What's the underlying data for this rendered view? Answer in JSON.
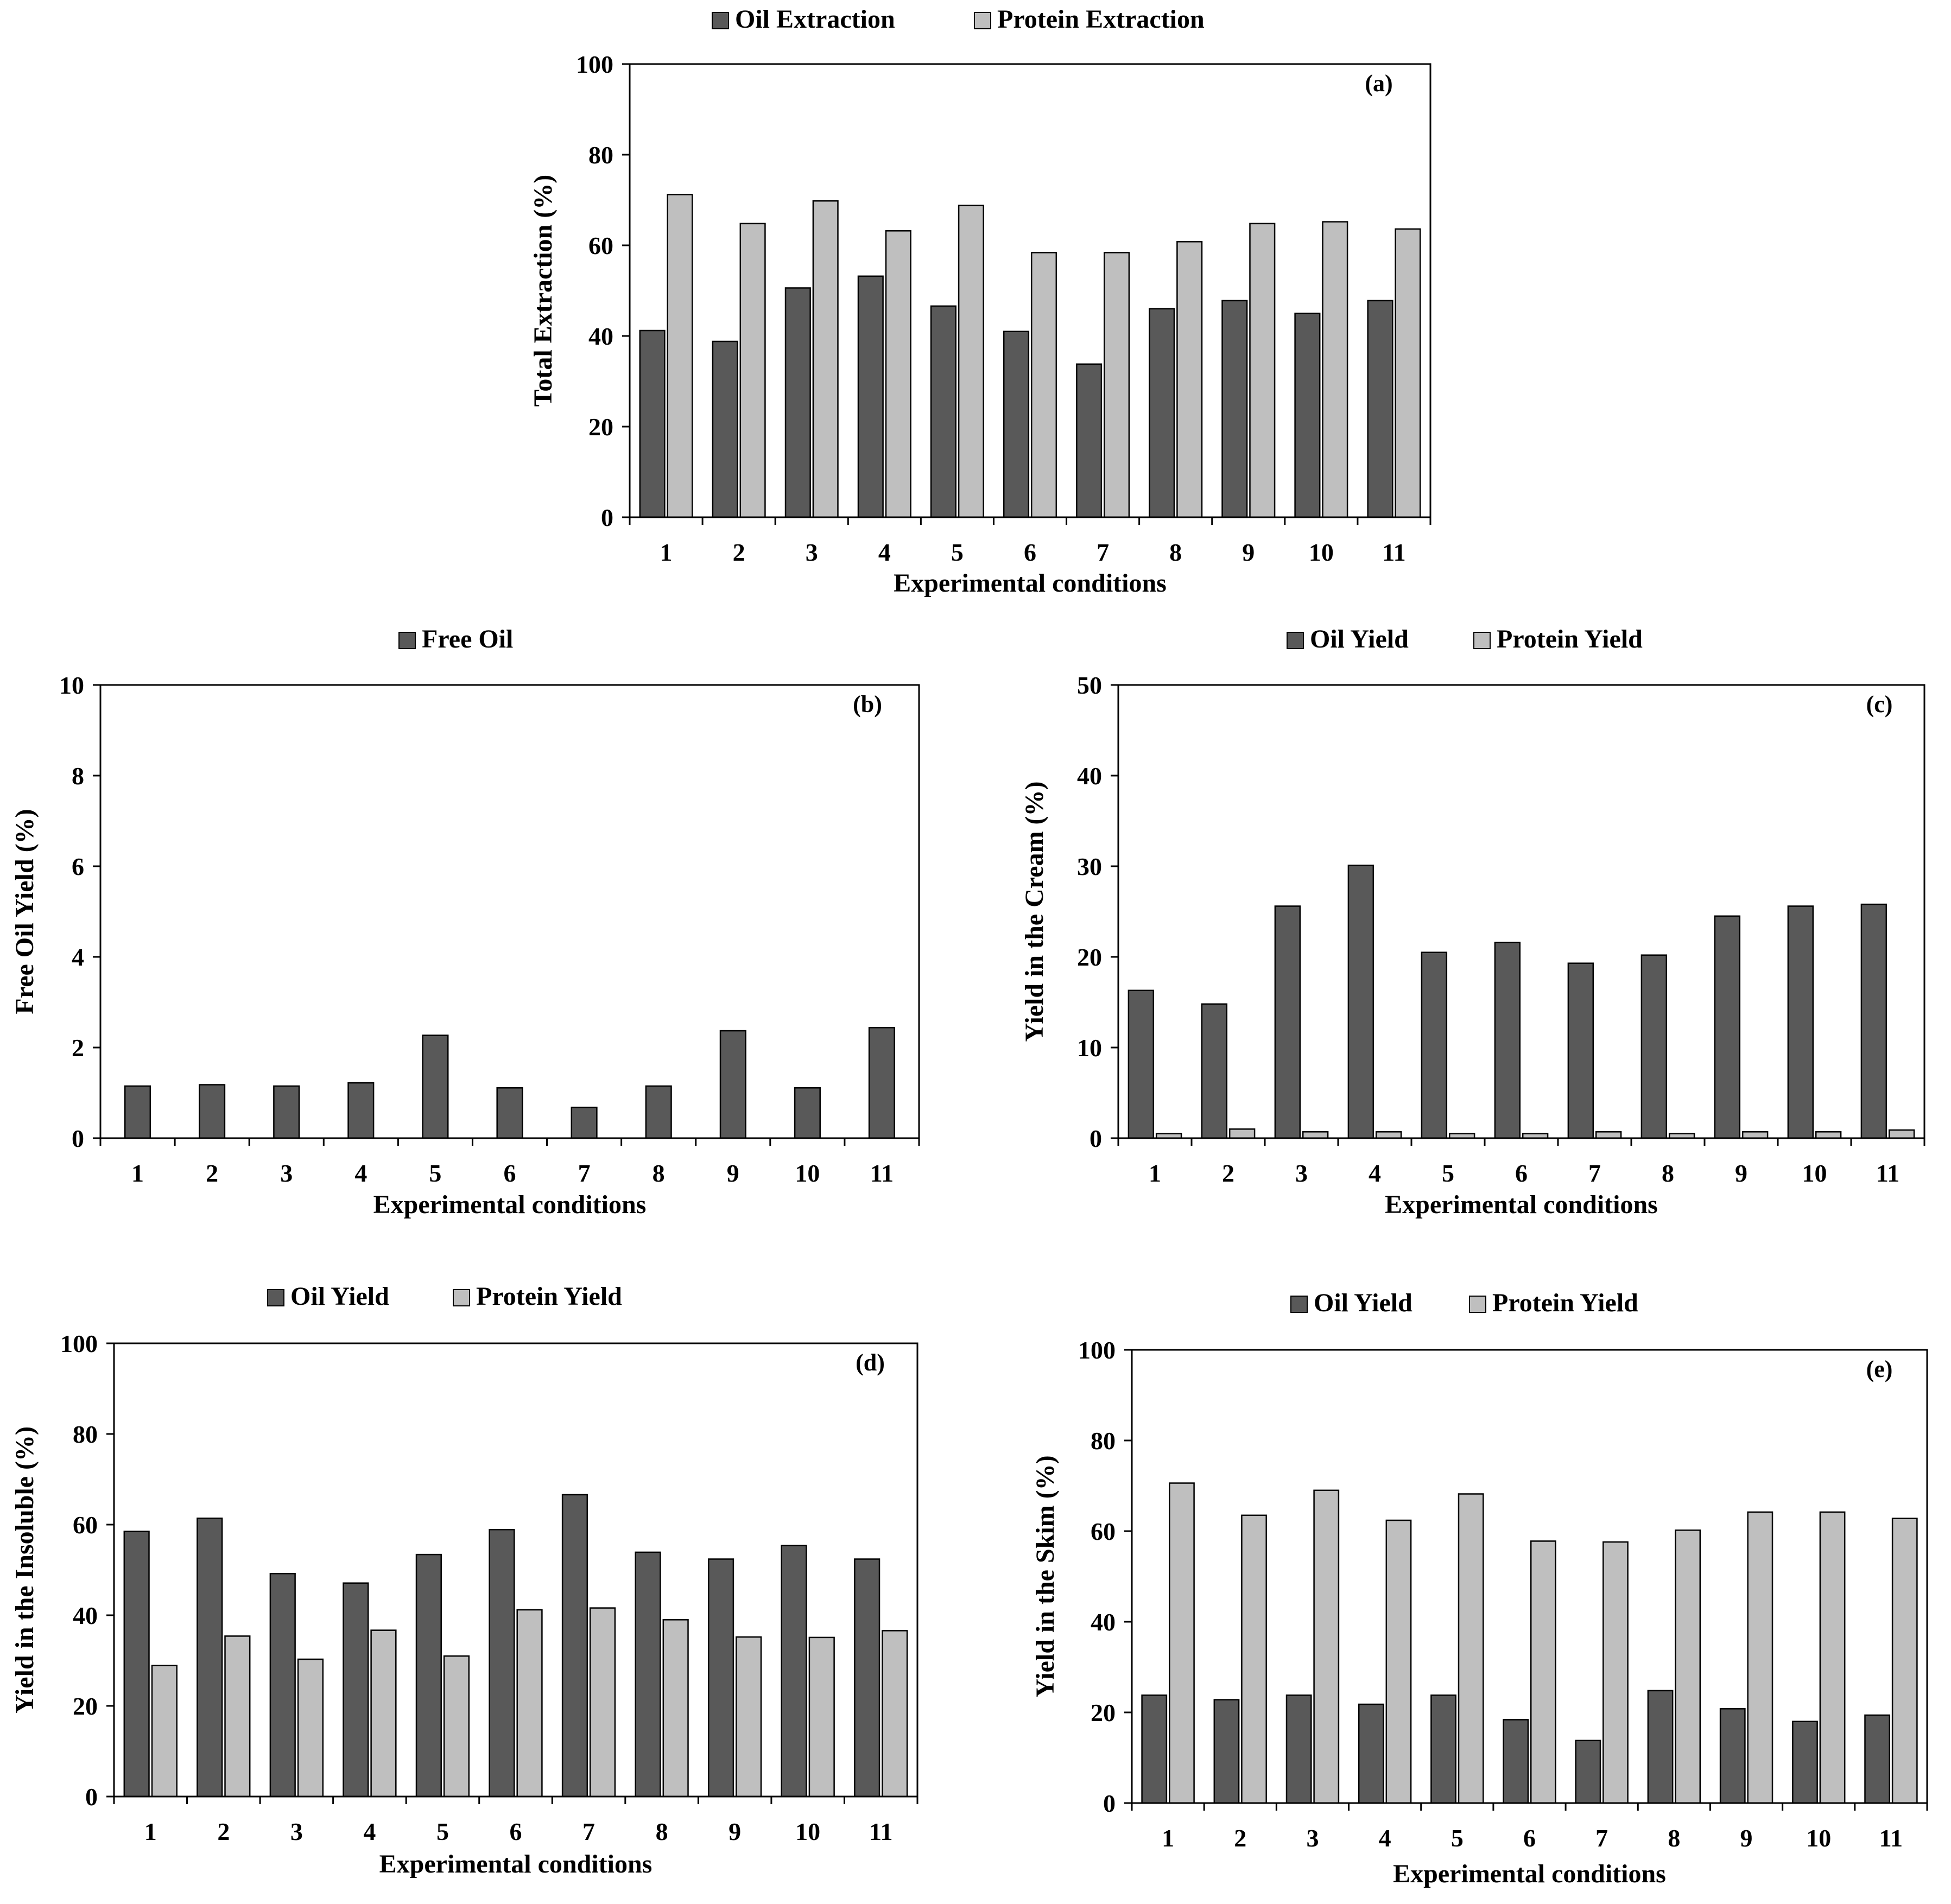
{
  "chart_data": [
    {
      "id": "a",
      "type": "bar",
      "panel_label": "(a)",
      "categories": [
        "1",
        "2",
        "3",
        "4",
        "5",
        "6",
        "7",
        "8",
        "9",
        "10",
        "11"
      ],
      "series": [
        {
          "name": "Oil Extraction",
          "color": "#595959",
          "values": [
            41.2,
            38.8,
            50.6,
            53.2,
            46.6,
            41.0,
            33.8,
            46.0,
            47.8,
            45.0,
            47.8
          ]
        },
        {
          "name": "Protein Extraction",
          "color": "#bfbfbf",
          "values": [
            71.2,
            64.8,
            69.8,
            63.2,
            68.8,
            58.4,
            58.4,
            60.8,
            64.8,
            65.2,
            63.6
          ]
        }
      ],
      "title": "",
      "xlabel": "Experimental conditions",
      "ylabel": "Total  Extraction (%)",
      "ylim": [
        0,
        100
      ],
      "yticks": [
        0,
        20,
        40,
        60,
        80,
        100
      ],
      "legend": "top",
      "grid": false
    },
    {
      "id": "b",
      "type": "bar",
      "panel_label": "(b)",
      "categories": [
        "1",
        "2",
        "3",
        "4",
        "5",
        "6",
        "7",
        "8",
        "9",
        "10",
        "11"
      ],
      "series": [
        {
          "name": "Free Oil",
          "color": "#595959",
          "values": [
            1.15,
            1.18,
            1.15,
            1.22,
            2.27,
            1.11,
            0.68,
            1.15,
            2.37,
            1.11,
            2.44
          ]
        }
      ],
      "title": "",
      "xlabel": "Experimental conditions",
      "ylabel": "Free Oil Yield (%)",
      "ylim": [
        0,
        10
      ],
      "yticks": [
        0,
        2,
        4,
        6,
        8,
        10
      ],
      "legend": "top",
      "grid": false
    },
    {
      "id": "c",
      "type": "bar",
      "panel_label": "(c)",
      "categories": [
        "1",
        "2",
        "3",
        "4",
        "5",
        "6",
        "7",
        "8",
        "9",
        "10",
        "11"
      ],
      "series": [
        {
          "name": "Oil Yield",
          "color": "#595959",
          "values": [
            16.3,
            14.8,
            25.6,
            30.1,
            20.5,
            21.6,
            19.3,
            20.2,
            24.5,
            25.6,
            25.8
          ]
        },
        {
          "name": "Protein Yield",
          "color": "#bfbfbf",
          "values": [
            0.5,
            1.0,
            0.7,
            0.7,
            0.5,
            0.5,
            0.7,
            0.5,
            0.7,
            0.7,
            0.9
          ]
        }
      ],
      "title": "",
      "xlabel": "Experimental conditions",
      "ylabel": "Yield in the Cream (%)",
      "ylim": [
        0,
        50
      ],
      "yticks": [
        0,
        10,
        20,
        30,
        40,
        50
      ],
      "legend": "top",
      "grid": false
    },
    {
      "id": "d",
      "type": "bar",
      "panel_label": "(d)",
      "categories": [
        "1",
        "2",
        "3",
        "4",
        "5",
        "6",
        "7",
        "8",
        "9",
        "10",
        "11"
      ],
      "series": [
        {
          "name": "Oil Yield",
          "color": "#595959",
          "values": [
            58.5,
            61.4,
            49.2,
            47.1,
            53.4,
            58.9,
            66.6,
            53.9,
            52.4,
            55.4,
            52.4
          ]
        },
        {
          "name": "Protein Yield",
          "color": "#bfbfbf",
          "values": [
            28.9,
            35.4,
            30.3,
            36.7,
            31.0,
            41.2,
            41.6,
            39.0,
            35.2,
            35.1,
            36.6
          ]
        }
      ],
      "title": "",
      "xlabel": "Experimental conditions",
      "ylabel": "Yield in the Insoluble (%)",
      "ylim": [
        0,
        100
      ],
      "yticks": [
        0,
        20,
        40,
        60,
        80,
        100
      ],
      "legend": "top",
      "grid": false
    },
    {
      "id": "e",
      "type": "bar",
      "panel_label": "(e)",
      "categories": [
        "1",
        "2",
        "3",
        "4",
        "5",
        "6",
        "7",
        "8",
        "9",
        "10",
        "11"
      ],
      "series": [
        {
          "name": "Oil Yield",
          "color": "#595959",
          "values": [
            23.8,
            22.8,
            23.8,
            21.8,
            23.8,
            18.4,
            13.8,
            24.8,
            20.8,
            18.0,
            19.4
          ]
        },
        {
          "name": "Protein Yield",
          "color": "#bfbfbf",
          "values": [
            70.6,
            63.5,
            69.0,
            62.4,
            68.2,
            57.8,
            57.6,
            60.2,
            64.2,
            64.2,
            62.8
          ]
        }
      ],
      "title": "",
      "xlabel": "Experimental conditions",
      "ylabel": "Yield in the Skim (%)",
      "ylim": [
        0,
        100
      ],
      "yticks": [
        0,
        20,
        40,
        60,
        80,
        100
      ],
      "legend": "top",
      "grid": false
    }
  ]
}
